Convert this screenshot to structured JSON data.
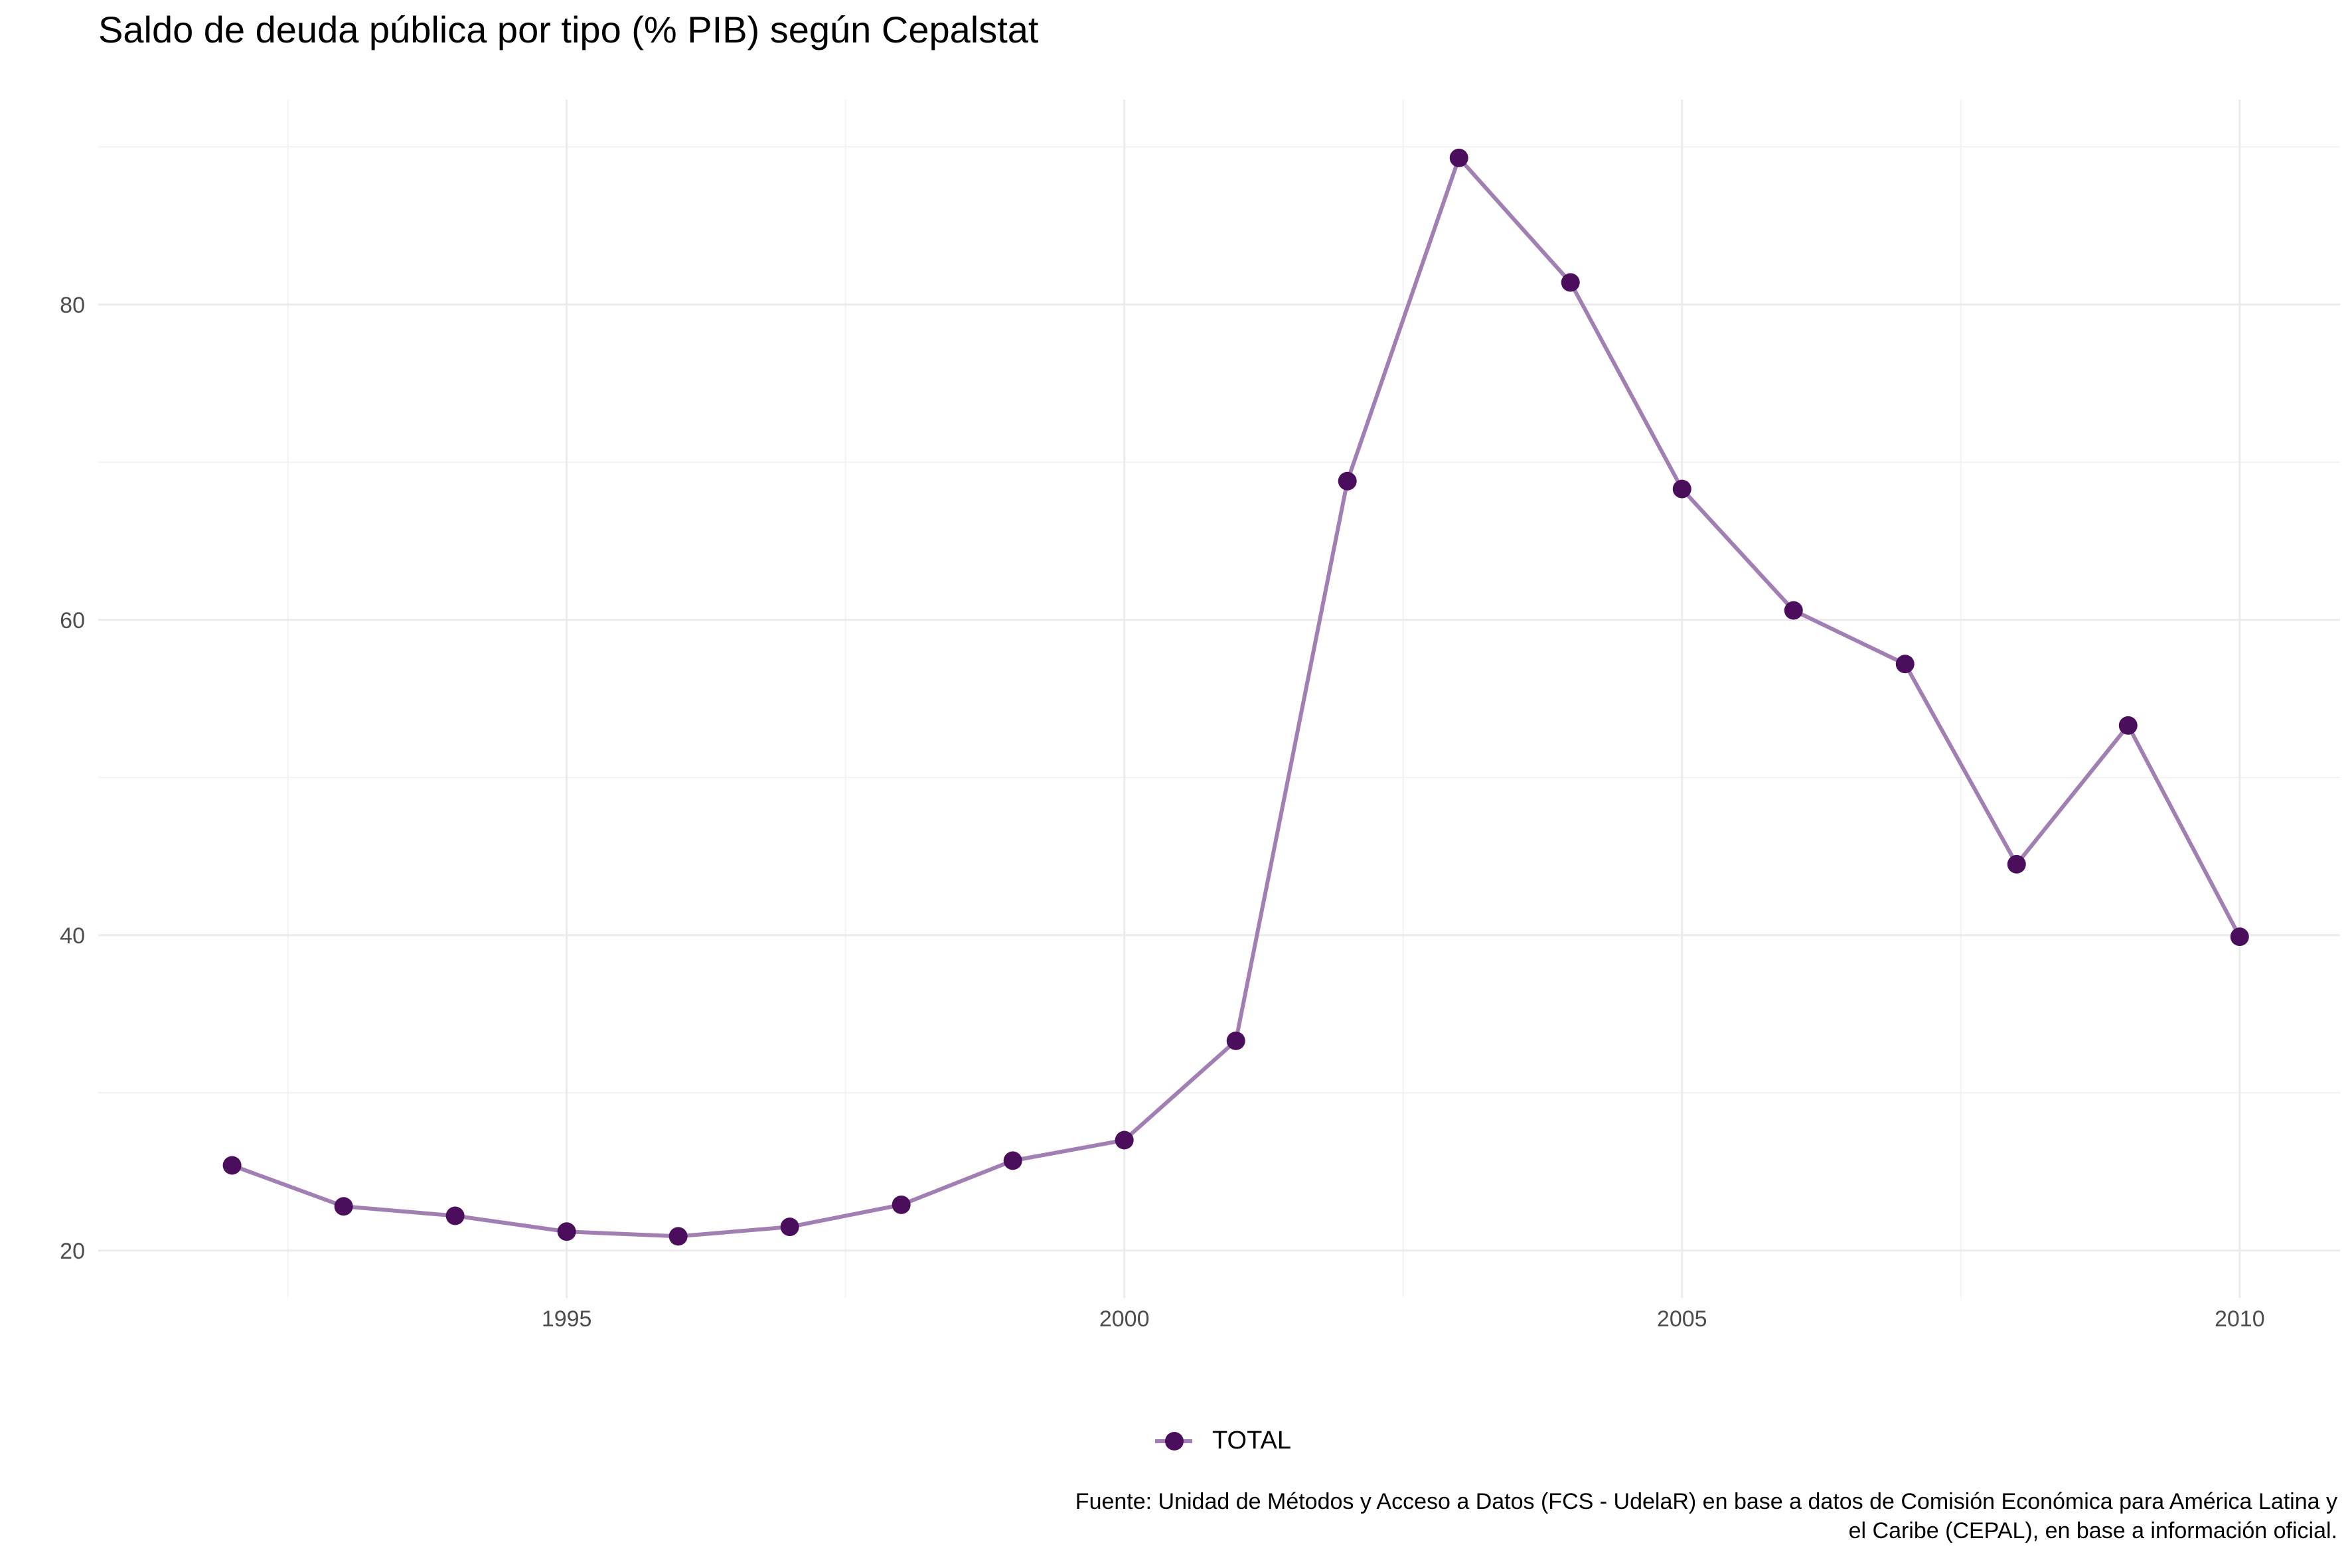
{
  "chart_data": {
    "type": "line",
    "title": "Saldo de deuda pública por tipo (% PIB) según Cepalstat",
    "xlabel": "",
    "ylabel": "",
    "x": [
      1992,
      1993,
      1994,
      1995,
      1996,
      1997,
      1998,
      1999,
      2000,
      2001,
      2002,
      2003,
      2004,
      2005,
      2006,
      2007,
      2008,
      2009,
      2010
    ],
    "series": [
      {
        "name": "TOTAL",
        "values": [
          25.4,
          22.8,
          22.2,
          21.2,
          20.9,
          21.5,
          22.9,
          25.7,
          27.0,
          33.3,
          68.8,
          89.3,
          81.4,
          68.3,
          60.6,
          57.2,
          44.5,
          53.3,
          39.9
        ],
        "color": "#a27fb2",
        "marker_color": "#4a0e5c"
      }
    ],
    "x_ticks": [
      "1995",
      "2000",
      "2005",
      "2010"
    ],
    "y_ticks": [
      "20",
      "40",
      "60",
      "80"
    ],
    "xlim": [
      1990.8,
      2010.9
    ],
    "ylim": [
      17.0,
      93.0
    ],
    "grid": true,
    "legend": "bottom",
    "caption": [
      "Fuente: Unidad de Métodos y Acceso a Datos (FCS - UdelaR) en base a datos de Comisión Económica para América Latina y",
      "el Caribe (CEPAL), en base a información oficial."
    ]
  }
}
